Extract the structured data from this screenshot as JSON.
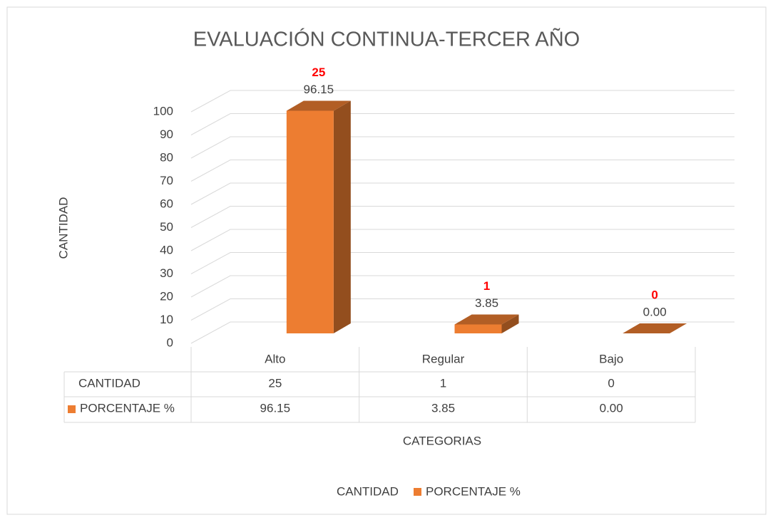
{
  "chart_data": {
    "type": "bar3d",
    "title": "EVALUACIÓN CONTINUA-TERCER AÑO",
    "categories": [
      "Alto",
      "Regular",
      "Bajo"
    ],
    "series": [
      {
        "name": "CANTIDAD",
        "color": "#ff0000",
        "values": [
          25,
          1,
          0
        ]
      },
      {
        "name": "PORCENTAJE %",
        "color": "#ed7d31",
        "values": [
          96.15,
          3.85,
          0.0
        ],
        "value_labels": [
          "96.15",
          "3.85",
          "0.00"
        ]
      }
    ],
    "ylim": [
      0,
      100
    ],
    "yticks": [
      0,
      10,
      20,
      30,
      40,
      50,
      60,
      70,
      80,
      90,
      100
    ],
    "xlabel": "CATEGORIAS",
    "ylabel": "CANTIDAD",
    "grid": true,
    "legend": "bottom",
    "data_table": true
  }
}
